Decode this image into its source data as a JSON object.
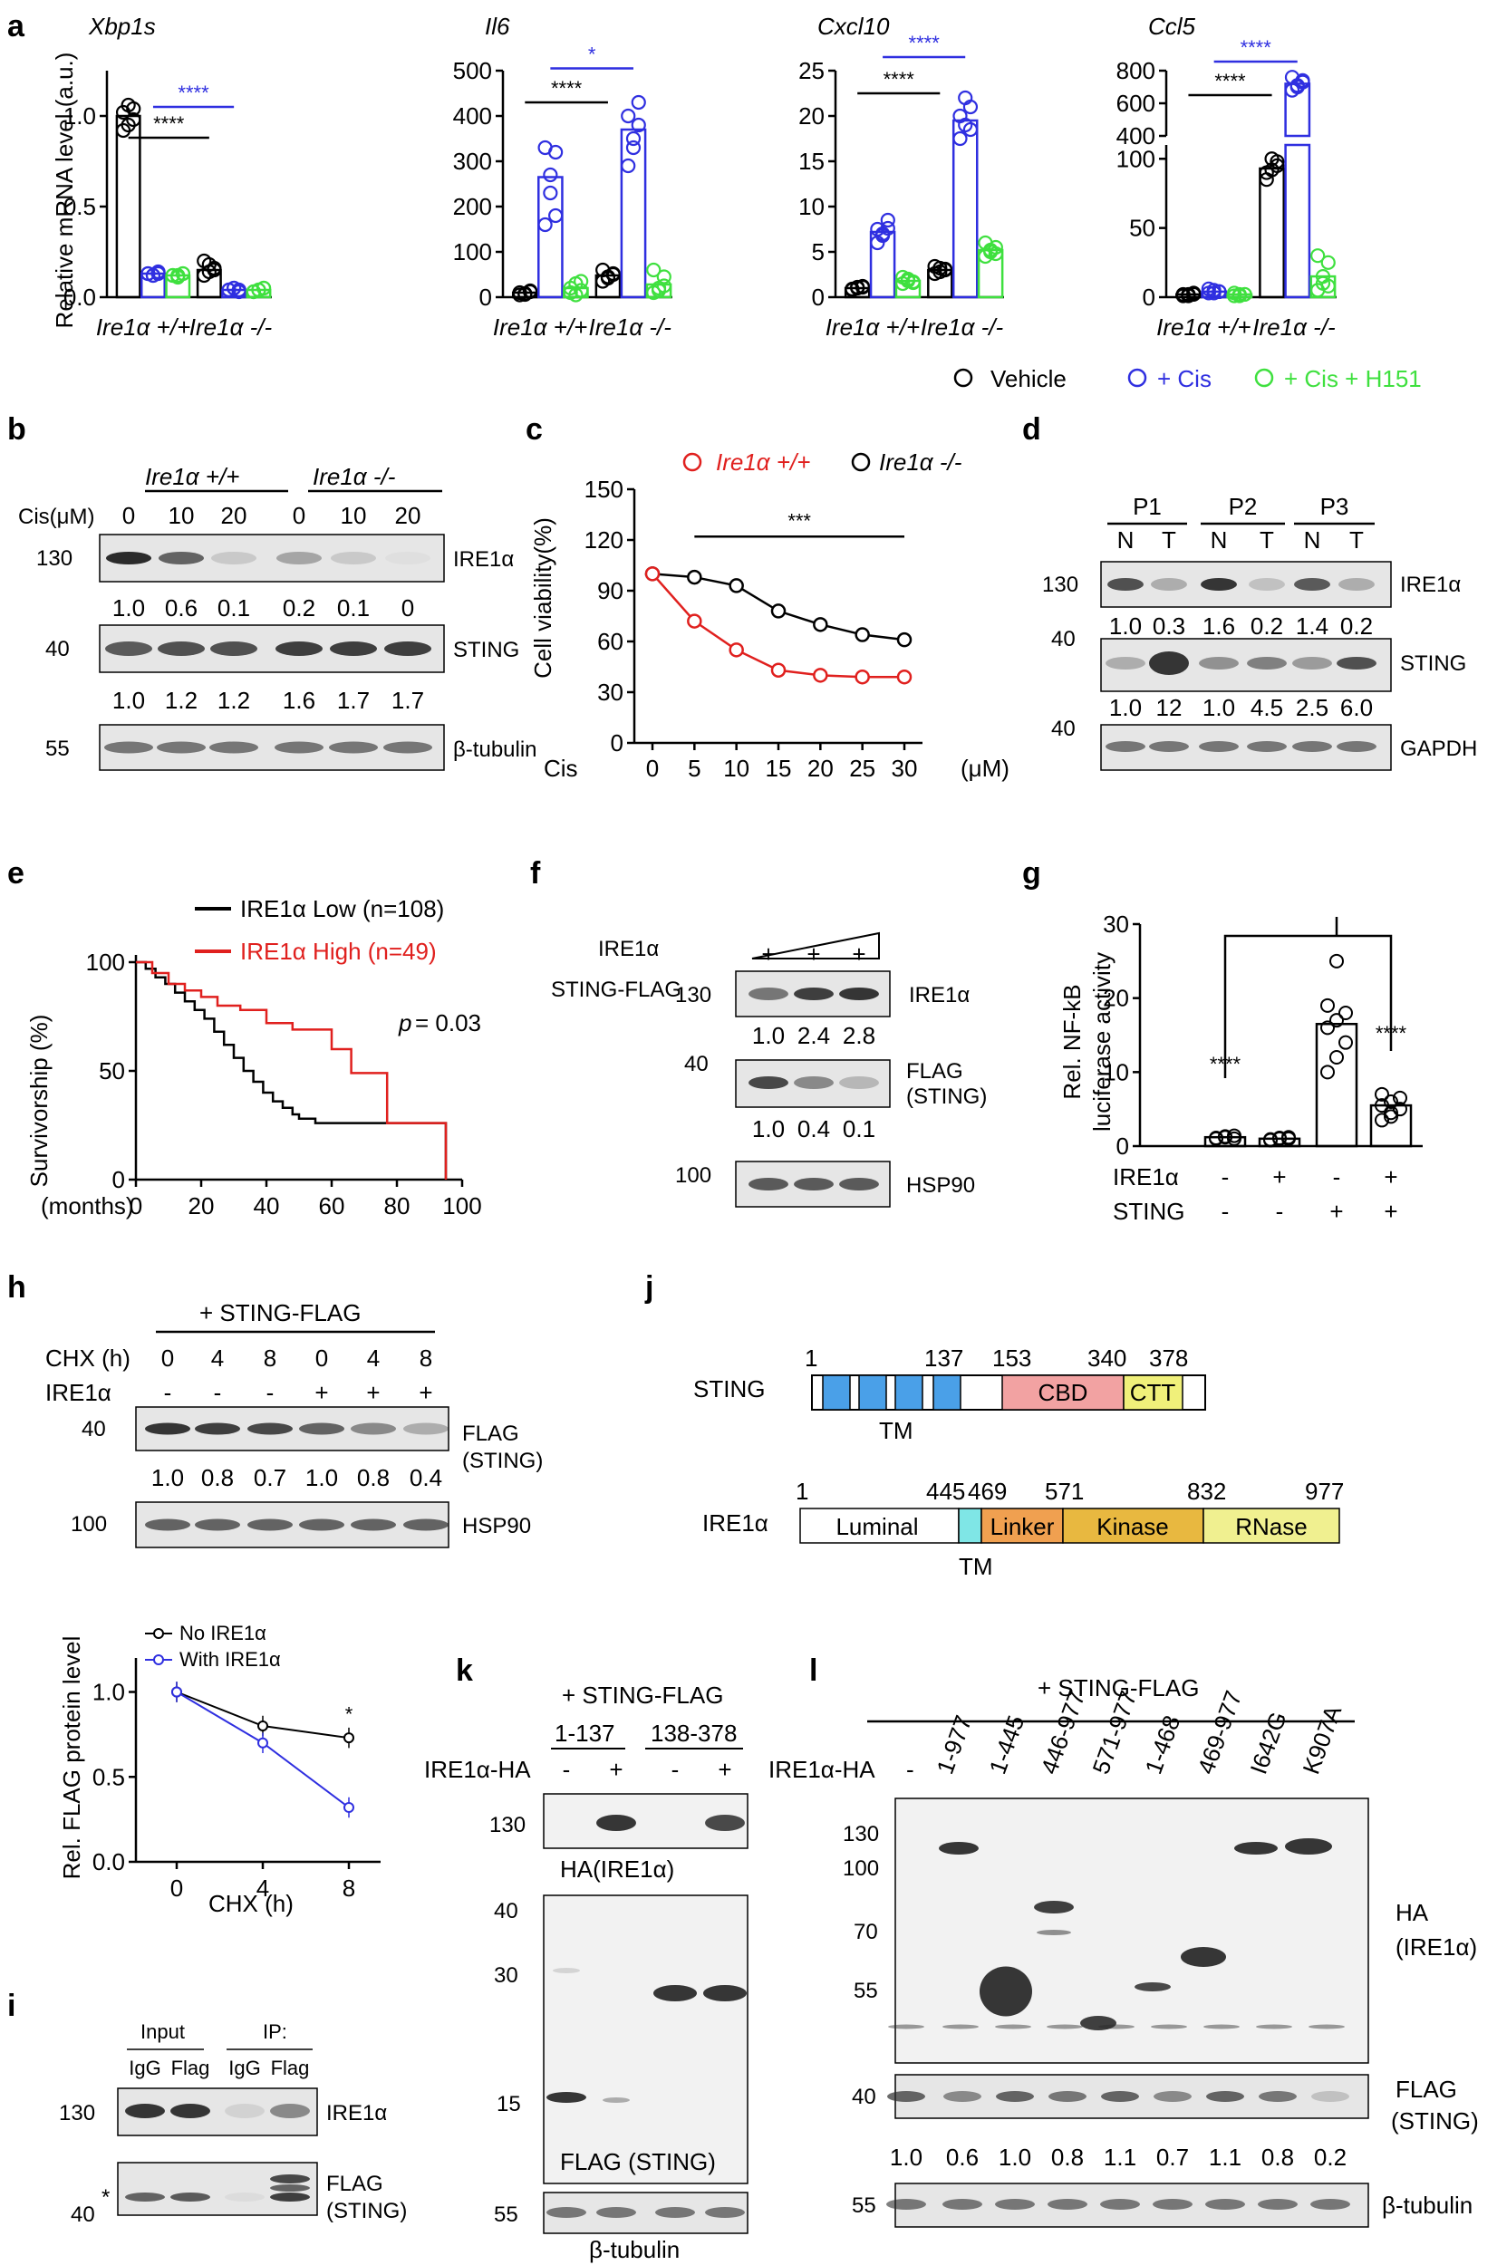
{
  "colors": {
    "vehicle": "#000000",
    "cis": "#2f2fe0",
    "cis_h151": "#3fe03f",
    "red": "#e0201e",
    "blue": "#2f2fe0",
    "tm": "#4aa0e8",
    "cbd": "#f2a2a2",
    "ctt": "#f0f07a",
    "ire_tm": "#7fe6e6",
    "linker": "#f0a050",
    "kinase": "#e8b840",
    "rnase": "#f0f090"
  },
  "panel_a": {
    "letter": "a",
    "ylabel": "Relative mRNA level (a.u.)",
    "groups": [
      "Ire1α +/+",
      "Ire1α -/-"
    ],
    "sig": "****",
    "sig_top": [
      "****",
      "*",
      "****",
      "****"
    ],
    "legend": [
      "Vehicle",
      "+ Cis",
      "+ Cis + H151"
    ],
    "charts": [
      {
        "gene": "Xbp1s",
        "ticks": [
          "0.0",
          "0.5",
          "1.0"
        ]
      },
      {
        "gene": "Il6",
        "ticks": [
          "0",
          "100",
          "200",
          "300",
          "400",
          "500"
        ]
      },
      {
        "gene": "Cxcl10",
        "ticks": [
          "0",
          "5",
          "10",
          "15",
          "20",
          "25"
        ]
      },
      {
        "gene": "Ccl5",
        "ticks": [
          "0",
          "50",
          "100",
          "400",
          "600",
          "800"
        ]
      }
    ]
  },
  "panel_b": {
    "letter": "b",
    "groups": [
      "Ire1α +/+",
      "Ire1α -/-"
    ],
    "cis_label": "Cis(μM)",
    "doses": [
      "0",
      "10",
      "20",
      "0",
      "10",
      "20"
    ],
    "blots": [
      {
        "mw": "130",
        "label": "IRE1α",
        "quant": [
          "1.0",
          "0.6",
          "0.1",
          "0.2",
          "0.1",
          "0"
        ]
      },
      {
        "mw": "40",
        "label": "STING",
        "quant": [
          "1.0",
          "1.2",
          "1.2",
          "1.6",
          "1.7",
          "1.7"
        ]
      },
      {
        "mw": "55",
        "label": "β-tubulin"
      }
    ]
  },
  "panel_c": {
    "letter": "c",
    "ylabel": "Cell viability(%)",
    "xlabel": "Cis",
    "unit": "(μM)",
    "legend": [
      "Ire1α +/+",
      "Ire1α -/-"
    ],
    "sig": "***",
    "yticks": [
      "0",
      "30",
      "60",
      "90",
      "120",
      "150"
    ],
    "xticks": [
      "0",
      "5",
      "10",
      "15",
      "20",
      "25",
      "30"
    ]
  },
  "panel_d": {
    "letter": "d",
    "patients": [
      "P1",
      "P2",
      "P3"
    ],
    "lanes": [
      "N",
      "T",
      "N",
      "T",
      "N",
      "T"
    ],
    "blots": [
      {
        "mw": "130",
        "label": "IRE1α",
        "quant": [
          "1.0",
          "0.3",
          "1.6",
          "0.2",
          "1.4",
          "0.2"
        ]
      },
      {
        "mw": "40",
        "label": "STING",
        "quant": [
          "1.0",
          "12",
          "1.0",
          "4.5",
          "2.5",
          "6.0"
        ]
      },
      {
        "mw": "40",
        "label": "GAPDH"
      }
    ]
  },
  "panel_e": {
    "letter": "e",
    "ylabel": "Survivorship (%)",
    "xlabel": "(months)",
    "legend": [
      "IRE1α Low (n=108)",
      "IRE1α High (n=49)"
    ],
    "pvalue": "= 0.03",
    "p": "p",
    "yticks": [
      "0",
      "50",
      "100"
    ],
    "xticks": [
      "0",
      "20",
      "40",
      "60",
      "80",
      "100"
    ]
  },
  "panel_f": {
    "letter": "f",
    "rows": [
      "IRE1α",
      "STING-FLAG"
    ],
    "plus": "+",
    "blots": [
      {
        "mw": "130",
        "label": "IRE1α",
        "quant": [
          "1.0",
          "2.4",
          "2.8"
        ]
      },
      {
        "mw": "40",
        "label": "FLAG",
        "label2": "(STING)",
        "quant": [
          "1.0",
          "0.4",
          "0.1"
        ]
      },
      {
        "mw": "100",
        "label": "HSP90"
      }
    ]
  },
  "panel_g": {
    "letter": "g",
    "ylabel1": "Rel. NF-kB",
    "ylabel2": "luciferase activity",
    "sig": "****",
    "rows": [
      {
        "label": "IRE1α",
        "values": [
          "-",
          "+",
          "-",
          "+"
        ]
      },
      {
        "label": "STING",
        "values": [
          "-",
          "-",
          "+",
          "+"
        ]
      }
    ],
    "yticks": [
      "0",
      "10",
      "20",
      "30"
    ]
  },
  "panel_h": {
    "letter": "h",
    "title": "+ STING-FLAG",
    "rows": [
      {
        "label": "CHX (h)",
        "values": [
          "0",
          "4",
          "8",
          "0",
          "4",
          "8"
        ]
      },
      {
        "label": "IRE1α",
        "values": [
          "-",
          "-",
          "-",
          "+",
          "+",
          "+"
        ]
      }
    ],
    "blots": [
      {
        "mw": "40",
        "label": "FLAG",
        "label2": "(STING)",
        "quant": [
          "1.0",
          "0.8",
          "0.7",
          "1.0",
          "0.8",
          "0.4"
        ]
      },
      {
        "mw": "100",
        "label": "HSP90"
      }
    ],
    "plot": {
      "ylabel": "Rel. FLAG protein level",
      "xlabel": "CHX (h)",
      "legend": [
        "No IRE1α",
        "With IRE1α"
      ],
      "sig": "*",
      "yticks": [
        "0.0",
        "0.5",
        "1.0"
      ],
      "xticks": [
        "0",
        "4",
        "8"
      ]
    }
  },
  "panel_i": {
    "letter": "i",
    "input": "Input",
    "ip": "IP:",
    "lanes": [
      "IgG",
      "Flag",
      "IgG",
      "Flag"
    ],
    "blots": [
      {
        "mw": "130",
        "label": "IRE1α"
      },
      {
        "mw": "40",
        "label": "FLAG",
        "label2": "(STING)",
        "star": "*"
      }
    ]
  },
  "panel_j": {
    "letter": "j",
    "sting": {
      "name": "STING",
      "positions": [
        "1",
        "137",
        "153",
        "340",
        "378"
      ],
      "tm": "TM",
      "cbd": "CBD",
      "ctt": "CTT"
    },
    "ire": {
      "name": "IRE1α",
      "positions": [
        "1",
        "445",
        "469",
        "571",
        "832",
        "977"
      ],
      "domains": [
        "Luminal",
        "Linker",
        "Kinase",
        "RNase"
      ],
      "tm": "TM"
    }
  },
  "panel_k": {
    "letter": "k",
    "title": "+ STING-FLAG",
    "constructs": [
      "1-137",
      "138-378"
    ],
    "row": "IRE1α-HA",
    "signs": [
      "-",
      "+",
      "-",
      "+"
    ],
    "blots": [
      {
        "mw": "130",
        "label": "HA(IRE1α)"
      },
      {
        "mws": [
          "40",
          "30",
          "15"
        ],
        "label": "FLAG (STING)"
      },
      {
        "mw": "55",
        "label": "β-tubulin"
      }
    ]
  },
  "panel_l": {
    "letter": "l",
    "title": "+   STING-FLAG",
    "row": "IRE1α-HA",
    "minus": "-",
    "lanes": [
      "1-977",
      "1-445",
      "446-977",
      "571-977",
      "1-468",
      "469-977",
      "I642G",
      "K907A"
    ],
    "blots": [
      {
        "mws": [
          "130",
          "100",
          "70",
          "55"
        ],
        "label": "HA",
        "label2": "(IRE1α)"
      },
      {
        "mw": "40",
        "label": "FLAG",
        "label2": "(STING)",
        "quant": [
          "1.0",
          "0.6",
          "1.0",
          "0.8",
          "1.1",
          "0.7",
          "1.1",
          "0.8",
          "0.2"
        ]
      },
      {
        "mw": "55",
        "label": "β-tubulin"
      }
    ]
  }
}
